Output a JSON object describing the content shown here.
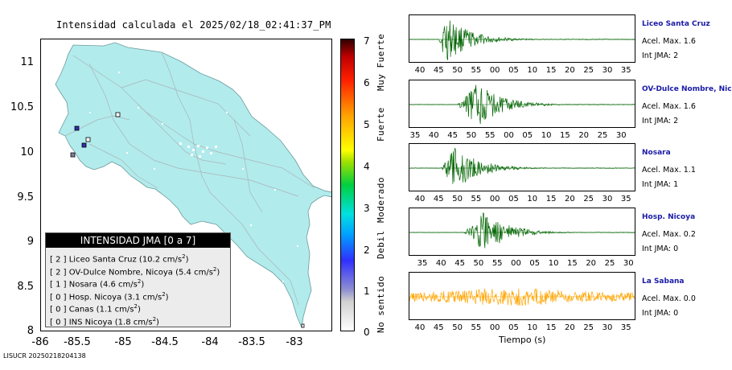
{
  "map": {
    "title": "Intensidad calculada el 2025/02/18_02:41:37_PM",
    "y_ticks": [
      "11",
      "10.5",
      "10",
      "9.5",
      "9",
      "8.5",
      "8"
    ],
    "x_ticks": [
      "-86",
      "-85.5",
      "-85",
      "-84.5",
      "-84",
      "-83.5",
      "-83"
    ],
    "land_color": "#b2ebec",
    "road_color": "#b0b8bc"
  },
  "colorbar": {
    "ticks": [
      "7",
      "6",
      "5",
      "4",
      "3",
      "2",
      "1",
      "0"
    ],
    "labels": [
      "Muy Fuerte",
      "Fuerte",
      "Moderado",
      "Debil",
      "No sentido"
    ]
  },
  "legend": {
    "title": "INTENSIDAD JMA [0 a 7]",
    "rows": [
      {
        "jma": "[ 2 ]",
        "text": "Liceo Santa Cruz (10.2 cm/s",
        "sup": "2",
        "close": ")"
      },
      {
        "jma": "[ 2 ]",
        "text": "OV-Dulce Nombre, Nicoya (5.4 cm/s",
        "sup": "2",
        "close": ")"
      },
      {
        "jma": "[ 1 ]",
        "text": "Nosara (4.6 cm/s",
        "sup": "2",
        "close": ")"
      },
      {
        "jma": "[ 0 ]",
        "text": "Hosp. Nicoya (3.1 cm/s",
        "sup": "2",
        "close": ")"
      },
      {
        "jma": "[ 0 ]",
        "text": "Canas (1.1 cm/s",
        "sup": "2",
        "close": ")"
      },
      {
        "jma": "[ 0 ]",
        "text": "INS Nicoya (1.8 cm/s",
        "sup": "2",
        "close": ")"
      }
    ]
  },
  "footer": "LISUCR 20250218204138",
  "traces": {
    "xlabel": "Tiempo (s)",
    "stations": [
      {
        "name": "Liceo Santa Cruz",
        "acel": "Acel. Max. 1.6",
        "jma": "Int JMA: 2",
        "ticks": [
          "40",
          "45",
          "50",
          "55",
          "00",
          "05",
          "10",
          "15",
          "20",
          "25",
          "30",
          "35"
        ],
        "color": "#006400",
        "onset": 0.13,
        "peak": 0.16,
        "amp": 0.85
      },
      {
        "name": "OV-Dulce Nombre, Nico",
        "acel": "Acel. Max. 1.6",
        "jma": "Int JMA: 2",
        "ticks": [
          "35",
          "40",
          "45",
          "50",
          "55",
          "00",
          "05",
          "10",
          "15",
          "20",
          "25",
          "30"
        ],
        "color": "#006400",
        "onset": 0.21,
        "peak": 0.3,
        "amp": 0.8
      },
      {
        "name": "Nosara",
        "acel": "Acel. Max. 1.1",
        "jma": "Int JMA: 1",
        "ticks": [
          "40",
          "45",
          "50",
          "55",
          "00",
          "05",
          "10",
          "15",
          "20",
          "25",
          "30",
          "35"
        ],
        "color": "#006400",
        "onset": 0.14,
        "peak": 0.2,
        "amp": 0.8
      },
      {
        "name": "Hosp. Nicoya",
        "acel": "Acel. Max. 0.2",
        "jma": "Int JMA: 0",
        "ticks": [
          "35",
          "40",
          "45",
          "50",
          "55",
          "00",
          "05",
          "10",
          "15",
          "20",
          "25",
          "30"
        ],
        "color": "#006400",
        "onset": 0.24,
        "peak": 0.33,
        "amp": 0.75
      },
      {
        "name": "La Sabana",
        "acel": "Acel. Max. 0.0",
        "jma": "Int JMA: 0",
        "ticks": [
          "40",
          "45",
          "50",
          "55",
          "00",
          "05",
          "10",
          "15",
          "20",
          "25",
          "30",
          "35"
        ],
        "color": "#ffa500",
        "onset": 0.0,
        "peak": 0.45,
        "amp": 0.45
      }
    ]
  }
}
